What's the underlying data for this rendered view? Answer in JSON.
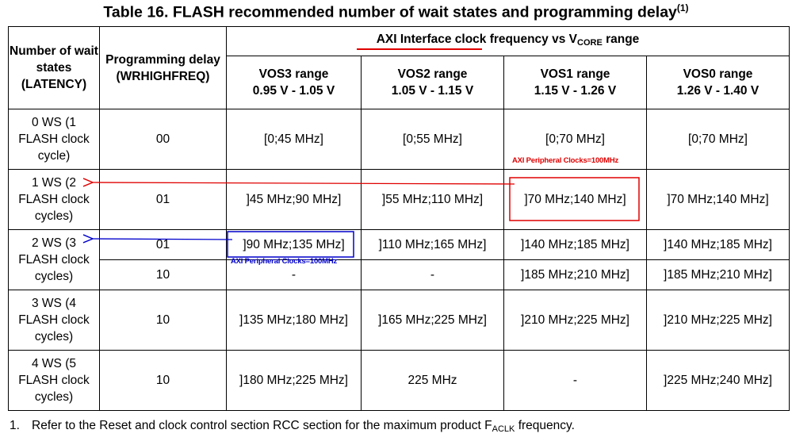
{
  "title": "Table 16. FLASH recommended number of wait states and programming delay",
  "title_footnote_ref": "(1)",
  "header": {
    "col_wait": "Number of wait states (LATENCY)",
    "col_delay": "Programming delay (WRHIGHFREQ)",
    "axi_prefix": "AXI Interface clock frequency vs V",
    "axi_sub": "CORE",
    "axi_suffix": " range",
    "vos": [
      {
        "name": "VOS3 range",
        "voltage": "0.95 V - 1.05 V"
      },
      {
        "name": "VOS2 range",
        "voltage": "1.05 V - 1.15 V"
      },
      {
        "name": "VOS1 range",
        "voltage": "1.15 V - 1.26 V"
      },
      {
        "name": "VOS0 range",
        "voltage": "1.26 V - 1.40 V"
      }
    ]
  },
  "rows": [
    {
      "ws": "0 WS (1 FLASH clock cycle)",
      "delay": "00",
      "vos3": "[0;45 MHz]",
      "vos2": "[0;55 MHz]",
      "vos1": "[0;70 MHz]",
      "vos0": "[0;70 MHz]"
    },
    {
      "ws": "1 WS (2 FLASH clock cycles)",
      "delay": "01",
      "vos3": "]45 MHz;90 MHz]",
      "vos2": "]55 MHz;110 MHz]",
      "vos1": "]70 MHz;140 MHz]",
      "vos0": "]70 MHz;140 MHz]"
    },
    {
      "ws": "2 WS (3 FLASH clock cycles)",
      "delay": "01",
      "vos3": "]90 MHz;135 MHz]",
      "vos2": "]110 MHz;165 MHz]",
      "vos1": "]140 MHz;185 MHz]",
      "vos0": "]140 MHz;185 MHz]"
    },
    {
      "ws": "",
      "delay": "10",
      "vos3": "-",
      "vos2": "-",
      "vos1": "]185 MHz;210 MHz]",
      "vos0": "]185 MHz;210 MHz]"
    },
    {
      "ws": "3 WS (4 FLASH clock cycles)",
      "delay": "10",
      "vos3": "]135 MHz;180 MHz]",
      "vos2": "]165 MHz;225 MHz]",
      "vos1": "]210 MHz;225 MHz]",
      "vos0": "]210 MHz;225 MHz]"
    },
    {
      "ws": "4 WS (5 FLASH clock cycles)",
      "delay": "10",
      "vos3": "]180 MHz;225 MHz]",
      "vos2": "225 MHz",
      "vos1": "-",
      "vos0": "]225 MHz;240 MHz]"
    }
  ],
  "footnote": {
    "number": "1.",
    "text_before": "Refer to the Reset and clock control section RCC section for the maximum product F",
    "sub": "ACLK",
    "text_after": " frequency."
  },
  "annotations": {
    "red_note": "AXI Peripheral Clocks=100MHz",
    "blue_note": "AXI Peripheral Clocks=100MHz",
    "red_color": "#e00000",
    "blue_color": "#0000cc"
  }
}
